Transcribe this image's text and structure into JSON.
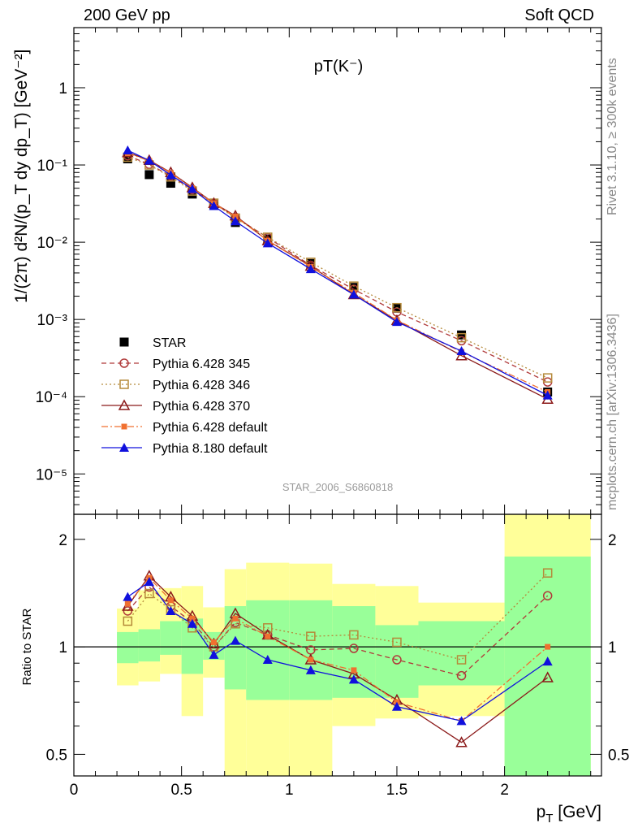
{
  "header": {
    "left": "200 GeV pp",
    "right": "Soft QCD"
  },
  "side_labels": {
    "rivet": "Rivet 3.1.10, ≥ 300k events",
    "mcplots": "mcplots.cern.ch [arXiv:1306.3436]"
  },
  "chart_data": [
    {
      "type": "scatter",
      "title": "pT(K⁻)",
      "analysis": "STAR_2006_S6860818",
      "ylabel": "1/(2π) d²N/(p_T dy dp_T) [GeV⁻²]",
      "yscale": "log",
      "xlim": [
        0,
        2.45
      ],
      "ylim": [
        3e-06,
        6
      ],
      "y_ticks": [
        "10⁻⁵",
        "10⁻⁴",
        "10⁻³",
        "10⁻²",
        "10⁻¹",
        "1"
      ],
      "legend_position": "bottom-left",
      "x": [
        0.25,
        0.35,
        0.45,
        0.55,
        0.65,
        0.75,
        0.9,
        1.1,
        1.3,
        1.5,
        1.8,
        2.2
      ],
      "series": [
        {
          "name": "STAR",
          "color": "#000000",
          "marker": "square-filled",
          "line": "none",
          "values": [
            0.12,
            0.075,
            0.058,
            0.042,
            0.031,
            0.018,
            0.011,
            0.0053,
            0.0026,
            0.0014,
            0.00063,
            0.000115
          ]
        },
        {
          "name": "Pythia 6.428 345",
          "color": "#b03a3a",
          "marker": "circle-open",
          "line": "dashed",
          "values": [
            0.132,
            0.102,
            0.072,
            0.048,
            0.032,
            0.021,
            0.0115,
            0.005,
            0.00245,
            0.00125,
            0.00053,
            0.000155
          ]
        },
        {
          "name": "Pythia 6.428 346",
          "color": "#b58a3a",
          "marker": "square-open",
          "line": "dotted",
          "values": [
            0.126,
            0.1,
            0.07,
            0.046,
            0.032,
            0.0205,
            0.0116,
            0.0055,
            0.0027,
            0.00142,
            0.00058,
            0.000175
          ]
        },
        {
          "name": "Pythia 6.428 370",
          "color": "#8b1a1a",
          "marker": "triangle-open",
          "line": "solid",
          "values": [
            0.145,
            0.115,
            0.08,
            0.051,
            0.032,
            0.022,
            0.0105,
            0.0049,
            0.0021,
            0.00097,
            0.00034,
            9.3e-05
          ]
        },
        {
          "name": "Pythia 6.428 default",
          "color": "#f07030",
          "marker": "square-small",
          "line": "dashdot",
          "values": [
            0.142,
            0.113,
            0.079,
            0.05,
            0.032,
            0.0215,
            0.0105,
            0.0048,
            0.0022,
            0.00098,
            0.00038,
            0.000115
          ]
        },
        {
          "name": "Pythia 8.180 default",
          "color": "#1010dd",
          "marker": "triangle-filled",
          "line": "solid",
          "values": [
            0.155,
            0.114,
            0.074,
            0.049,
            0.0295,
            0.0187,
            0.0097,
            0.0045,
            0.0021,
            0.00093,
            0.00039,
            0.000104
          ]
        }
      ]
    },
    {
      "type": "scatter",
      "ylabel": "Ratio to STAR",
      "xlabel": "p_T [GeV]",
      "yscale": "log",
      "xlim": [
        0,
        2.45
      ],
      "ylim": [
        0.435,
        2.35
      ],
      "y_ticks": [
        "0.5",
        "1",
        "2"
      ],
      "x_ticks": [
        "0",
        "0.5",
        "1",
        "1.5",
        "2"
      ],
      "bins": [
        [
          0.2,
          0.3
        ],
        [
          0.3,
          0.4
        ],
        [
          0.4,
          0.5
        ],
        [
          0.5,
          0.6
        ],
        [
          0.6,
          0.7
        ],
        [
          0.7,
          0.8
        ],
        [
          0.8,
          1.0
        ],
        [
          1.0,
          1.2
        ],
        [
          1.2,
          1.4
        ],
        [
          1.4,
          1.6
        ],
        [
          1.6,
          2.0
        ],
        [
          2.0,
          2.4
        ]
      ],
      "uncertainty_green": [
        [
          0.9,
          1.1
        ],
        [
          0.91,
          1.12
        ],
        [
          0.95,
          1.18
        ],
        [
          0.84,
          1.2
        ],
        [
          0.92,
          1.1
        ],
        [
          0.76,
          1.3
        ],
        [
          0.71,
          1.35
        ],
        [
          0.71,
          1.35
        ],
        [
          0.72,
          1.3
        ],
        [
          0.72,
          1.15
        ],
        [
          0.78,
          1.18
        ],
        [
          0.4,
          1.79
        ]
      ],
      "uncertainty_yellow": [
        [
          0.78,
          1.28
        ],
        [
          0.8,
          1.44
        ],
        [
          0.84,
          1.46
        ],
        [
          0.64,
          1.48
        ],
        [
          0.82,
          1.29
        ],
        [
          0.42,
          1.65
        ],
        [
          0.4,
          1.72
        ],
        [
          0.4,
          1.71
        ],
        [
          0.6,
          1.5
        ],
        [
          0.63,
          1.48
        ],
        [
          0.64,
          1.33
        ],
        [
          0.4,
          2.35
        ]
      ],
      "x": [
        0.25,
        0.35,
        0.45,
        0.55,
        0.65,
        0.75,
        0.9,
        1.1,
        1.3,
        1.5,
        1.8,
        2.2
      ],
      "series": [
        {
          "name": "Pythia 6.428 345",
          "values": [
            1.26,
            1.47,
            1.3,
            1.17,
            1.0,
            1.17,
            1.08,
            0.98,
            0.99,
            0.92,
            0.83,
            1.39
          ]
        },
        {
          "name": "Pythia 6.428 346",
          "values": [
            1.18,
            1.41,
            1.27,
            1.13,
            1.0,
            1.16,
            1.13,
            1.07,
            1.08,
            1.03,
            0.92,
            1.61
          ]
        },
        {
          "name": "Pythia 6.428 370",
          "values": [
            1.3,
            1.58,
            1.38,
            1.22,
            1.02,
            1.24,
            1.08,
            0.92,
            0.84,
            0.71,
            0.54,
            0.82
          ]
        },
        {
          "name": "Pythia 6.428 default",
          "values": [
            1.32,
            1.56,
            1.35,
            1.2,
            1.03,
            1.2,
            1.07,
            0.92,
            0.86,
            0.7,
            0.62,
            1.0
          ]
        },
        {
          "name": "Pythia 8.180 default",
          "values": [
            1.38,
            1.52,
            1.26,
            1.16,
            0.95,
            1.04,
            0.92,
            0.86,
            0.81,
            0.68,
            0.62,
            0.91
          ]
        }
      ]
    }
  ]
}
